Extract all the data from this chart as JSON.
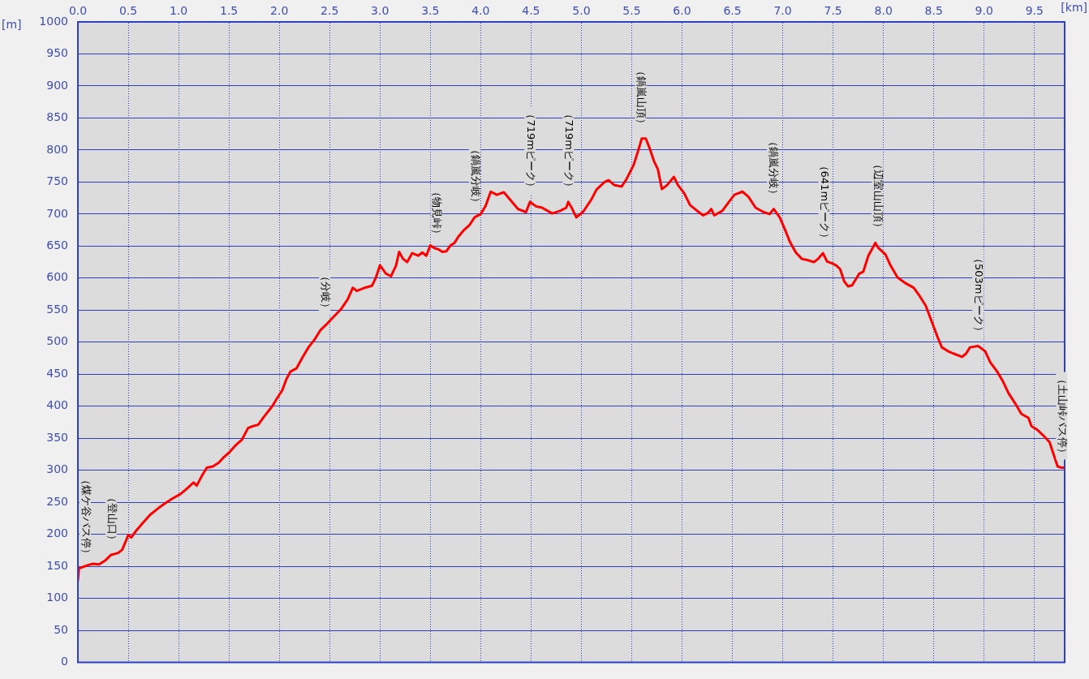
{
  "chart_data": {
    "type": "line",
    "xlabel": "[km]",
    "ylabel": "[m]",
    "xlim": [
      0,
      9.8
    ],
    "ylim": [
      0,
      1000
    ],
    "xticks": [
      {
        "value": 0,
        "label": "0.0"
      },
      {
        "value": 0.5,
        "label": "0.5"
      },
      {
        "value": 1,
        "label": "1.0"
      },
      {
        "value": 1.5,
        "label": "1.5"
      },
      {
        "value": 2,
        "label": "2.0"
      },
      {
        "value": 2.5,
        "label": "2.5"
      },
      {
        "value": 3,
        "label": "3.0"
      },
      {
        "value": 3.5,
        "label": "3.5"
      },
      {
        "value": 4,
        "label": "4.0"
      },
      {
        "value": 4.5,
        "label": "4.5"
      },
      {
        "value": 5,
        "label": "5.0"
      },
      {
        "value": 5.5,
        "label": "5.5"
      },
      {
        "value": 6,
        "label": "6.0"
      },
      {
        "value": 6.5,
        "label": "6.5"
      },
      {
        "value": 7,
        "label": "7.0"
      },
      {
        "value": 7.5,
        "label": "7.5"
      },
      {
        "value": 8,
        "label": "8.0"
      },
      {
        "value": 8.5,
        "label": "8.5"
      },
      {
        "value": 9,
        "label": "9.0"
      },
      {
        "value": 9.5,
        "label": "9.5"
      }
    ],
    "yticks": [
      0,
      50,
      100,
      150,
      200,
      250,
      300,
      350,
      400,
      450,
      500,
      550,
      600,
      650,
      700,
      750,
      800,
      850,
      900,
      950,
      1000
    ],
    "grid": true,
    "series": [
      {
        "color": "#ff0000",
        "x": [
          0.0,
          0.01,
          0.03,
          0.1,
          0.15,
          0.21,
          0.27,
          0.33,
          0.4,
          0.44,
          0.48,
          0.5,
          0.53,
          0.58,
          0.64,
          0.72,
          0.8,
          0.88,
          0.94,
          1.02,
          1.08,
          1.15,
          1.18,
          1.23,
          1.28,
          1.34,
          1.4,
          1.44,
          1.51,
          1.56,
          1.63,
          1.69,
          1.74,
          1.79,
          1.85,
          1.93,
          1.98,
          2.03,
          2.07,
          2.11,
          2.17,
          2.23,
          2.29,
          2.35,
          2.41,
          2.47,
          2.53,
          2.61,
          2.68,
          2.73,
          2.77,
          2.85,
          2.92,
          2.96,
          3.0,
          3.06,
          3.11,
          3.16,
          3.19,
          3.23,
          3.27,
          3.32,
          3.38,
          3.42,
          3.46,
          3.5,
          3.54,
          3.58,
          3.62,
          3.66,
          3.7,
          3.74,
          3.78,
          3.84,
          3.89,
          3.94,
          4.0,
          4.05,
          4.1,
          4.16,
          4.23,
          4.29,
          4.37,
          4.45,
          4.49,
          4.55,
          4.61,
          4.71,
          4.79,
          4.85,
          4.87,
          4.91,
          4.95,
          5.02,
          5.1,
          5.15,
          5.23,
          5.27,
          5.33,
          5.4,
          5.45,
          5.52,
          5.57,
          5.6,
          5.64,
          5.68,
          5.72,
          5.76,
          5.8,
          5.85,
          5.92,
          5.96,
          6.02,
          6.08,
          6.15,
          6.21,
          6.26,
          6.29,
          6.32,
          6.4,
          6.47,
          6.52,
          6.6,
          6.66,
          6.73,
          6.81,
          6.87,
          6.91,
          6.97,
          7.03,
          7.07,
          7.13,
          7.19,
          7.25,
          7.31,
          7.35,
          7.4,
          7.44,
          7.49,
          7.53,
          7.57,
          7.61,
          7.65,
          7.69,
          7.76,
          7.8,
          7.85,
          7.92,
          7.95,
          8.02,
          8.07,
          8.14,
          8.22,
          8.3,
          8.36,
          8.42,
          8.48,
          8.54,
          8.58,
          8.64,
          8.7,
          8.78,
          8.82,
          8.86,
          8.94,
          9.01,
          9.06,
          9.13,
          9.19,
          9.24,
          9.31,
          9.37,
          9.44,
          9.47,
          9.53,
          9.59,
          9.65,
          9.69,
          9.73,
          9.77,
          9.8
        ],
        "values": [
          128,
          147,
          148,
          152,
          154,
          153,
          159,
          168,
          171,
          176,
          191,
          199,
          195,
          206,
          217,
          231,
          241,
          250,
          256,
          263,
          271,
          281,
          276,
          291,
          304,
          306,
          312,
          319,
          329,
          338,
          348,
          366,
          369,
          371,
          384,
          400,
          413,
          425,
          442,
          454,
          459,
          476,
          492,
          504,
          519,
          528,
          538,
          551,
          567,
          585,
          580,
          585,
          588,
          601,
          620,
          607,
          603,
          620,
          641,
          630,
          625,
          639,
          635,
          640,
          635,
          651,
          647,
          645,
          641,
          642,
          651,
          655,
          665,
          676,
          683,
          695,
          700,
          713,
          735,
          730,
          734,
          723,
          708,
          703,
          719,
          712,
          710,
          701,
          705,
          710,
          719,
          708,
          695,
          704,
          723,
          738,
          750,
          753,
          745,
          743,
          755,
          777,
          802,
          818,
          818,
          802,
          783,
          770,
          739,
          745,
          758,
          745,
          733,
          714,
          705,
          698,
          702,
          708,
          698,
          705,
          720,
          730,
          735,
          727,
          710,
          703,
          700,
          708,
          695,
          673,
          657,
          640,
          630,
          628,
          625,
          630,
          639,
          626,
          623,
          620,
          614,
          595,
          587,
          589,
          607,
          610,
          635,
          655,
          647,
          637,
          620,
          601,
          592,
          585,
          572,
          557,
          532,
          507,
          492,
          486,
          482,
          477,
          482,
          492,
          494,
          486,
          469,
          454,
          438,
          421,
          404,
          388,
          382,
          369,
          363,
          354,
          344,
          325,
          306,
          304,
          304
        ]
      }
    ],
    "annotations": [
      {
        "text": "（煤ケ谷バス停）",
        "x": 0.0,
        "y": 147
      },
      {
        "text": "（登山口）",
        "x": 0.33,
        "y": 168
      },
      {
        "text": "（分岐）",
        "x": 2.45,
        "y": 530
      },
      {
        "text": "（物見峠）",
        "x": 3.56,
        "y": 646
      },
      {
        "text": "（鍋嵐分岐）",
        "x": 3.94,
        "y": 695
      },
      {
        "text": "（719mピーク）",
        "x": 4.49,
        "y": 719
      },
      {
        "text": "（719mピーク）",
        "x": 4.87,
        "y": 719
      },
      {
        "text": "（鍋嵐山頂）",
        "x": 5.59,
        "y": 818
      },
      {
        "text": "（鍋嵐分岐）",
        "x": 6.9,
        "y": 708
      },
      {
        "text": "（641mピーク）",
        "x": 7.41,
        "y": 639
      },
      {
        "text": "（辺室山山頂）",
        "x": 7.94,
        "y": 655
      },
      {
        "text": "（503mピーク）",
        "x": 8.94,
        "y": 494
      },
      {
        "text": "（土山峠バス停）",
        "x": 9.77,
        "y": 304
      }
    ]
  }
}
